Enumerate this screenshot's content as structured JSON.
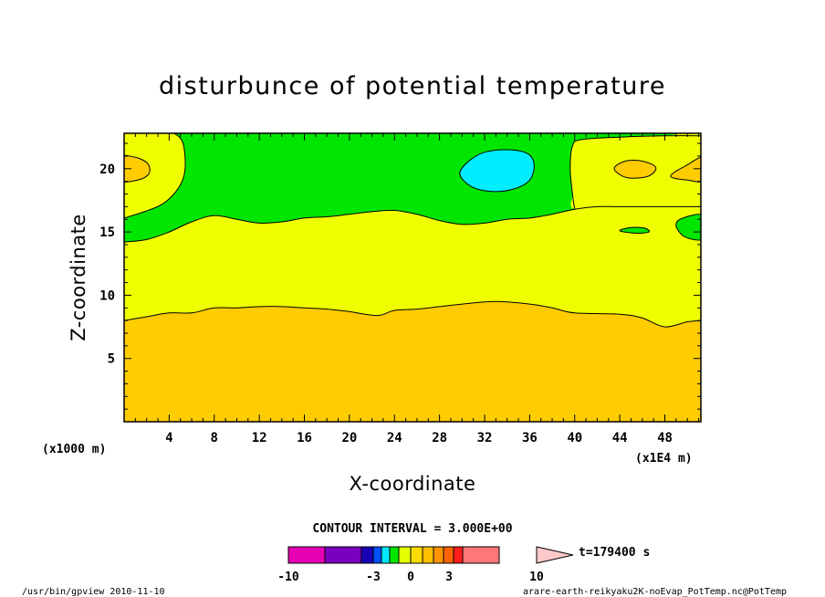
{
  "chart_data": {
    "type": "heatmap",
    "title": "disturbunce of potential temperature",
    "xlabel": "X-coordinate",
    "ylabel": "Z-coordinate",
    "x_unit_note": "(x1000 m)",
    "x_scale_note": "(x1E4 m)",
    "xlim": [
      0,
      51.2
    ],
    "ylim": [
      0,
      22.8
    ],
    "x_ticks": [
      4,
      8,
      12,
      16,
      20,
      24,
      28,
      32,
      36,
      40,
      44,
      48
    ],
    "y_ticks": [
      5,
      10,
      15,
      20
    ],
    "contour_interval_text": "CONTOUR INTERVAL = 3.000E+00",
    "time_text": "t=179400 s",
    "footer_left": "/usr/bin/gpview   2010-11-10",
    "footer_right": "arare-earth-reikyaku2K-noEvap_PotTemp.nc@PotTemp",
    "colorbar": {
      "levels": [
        -10,
        -3,
        0,
        3,
        10
      ],
      "labels": [
        "-10",
        "-3",
        "0",
        "3",
        "10"
      ],
      "colors": [
        "#e600b4",
        "#7a00bf",
        "#1a00b5",
        "#0050ff",
        "#00e6ff",
        "#00e600",
        "#e6ff00",
        "#ffdc00",
        "#ffbe00",
        "#ff9600",
        "#ff6400",
        "#ff1e1e",
        "#ff7878",
        "#ffc8c8"
      ]
    },
    "regions": [
      {
        "name": "lower-orange-layer",
        "color": "#ffcc00",
        "top_boundary": [
          [
            0,
            8
          ],
          [
            2,
            8.3
          ],
          [
            4,
            8.6
          ],
          [
            6,
            8.6
          ],
          [
            8,
            9
          ],
          [
            10,
            9
          ],
          [
            12,
            9.1
          ],
          [
            14,
            9.1
          ],
          [
            16,
            9
          ],
          [
            18,
            8.9
          ],
          [
            20,
            8.7
          ],
          [
            22.5,
            8.4
          ],
          [
            24,
            8.8
          ],
          [
            26,
            8.9
          ],
          [
            28,
            9.1
          ],
          [
            30,
            9.3
          ],
          [
            33,
            9.5
          ],
          [
            36,
            9.3
          ],
          [
            38,
            9
          ],
          [
            40,
            8.6
          ],
          [
            44,
            8.5
          ],
          [
            46,
            8.2
          ],
          [
            48,
            7.5
          ],
          [
            50,
            7.9
          ],
          [
            51.2,
            8
          ]
        ]
      },
      {
        "name": "middle-yellow-layer",
        "color": "#f0ff00",
        "top_boundary": [
          [
            0,
            14.2
          ],
          [
            2,
            14.4
          ],
          [
            4,
            15
          ],
          [
            6,
            15.8
          ],
          [
            8,
            16.3
          ],
          [
            10,
            16
          ],
          [
            12,
            15.7
          ],
          [
            14,
            15.8
          ],
          [
            16,
            16.1
          ],
          [
            18,
            16.2
          ],
          [
            20,
            16.4
          ],
          [
            22,
            16.6
          ],
          [
            24,
            16.7
          ],
          [
            26,
            16.4
          ],
          [
            28,
            15.9
          ],
          [
            30,
            15.6
          ],
          [
            32,
            15.7
          ],
          [
            34,
            16
          ],
          [
            36,
            16.1
          ],
          [
            38,
            16.4
          ],
          [
            40,
            16.8
          ],
          [
            42,
            17
          ],
          [
            44,
            17
          ],
          [
            48,
            17
          ],
          [
            51.2,
            17
          ]
        ]
      },
      {
        "name": "upper-green-layer",
        "color": "#00e600"
      },
      {
        "name": "top-left-yellow-patch",
        "color": "#f0ff00"
      },
      {
        "name": "top-right-yellow-patch",
        "color": "#f0ff00"
      },
      {
        "name": "cyan-cell",
        "color": "#00eeff",
        "center": [
          33,
          20.1
        ]
      },
      {
        "name": "orange-cell-left",
        "color": "#ffcc00",
        "center": [
          1,
          20
        ]
      },
      {
        "name": "orange-cell-right-a",
        "color": "#ffcc00",
        "center": [
          45.5,
          20
        ]
      },
      {
        "name": "orange-cell-right-b",
        "color": "#ffcc00",
        "center": [
          50,
          20
        ]
      },
      {
        "name": "green-cell-small",
        "color": "#00e600",
        "center": [
          45.2,
          15.1
        ]
      },
      {
        "name": "green-cell-edge",
        "color": "#00e600",
        "center": [
          50.5,
          15.5
        ]
      }
    ]
  }
}
